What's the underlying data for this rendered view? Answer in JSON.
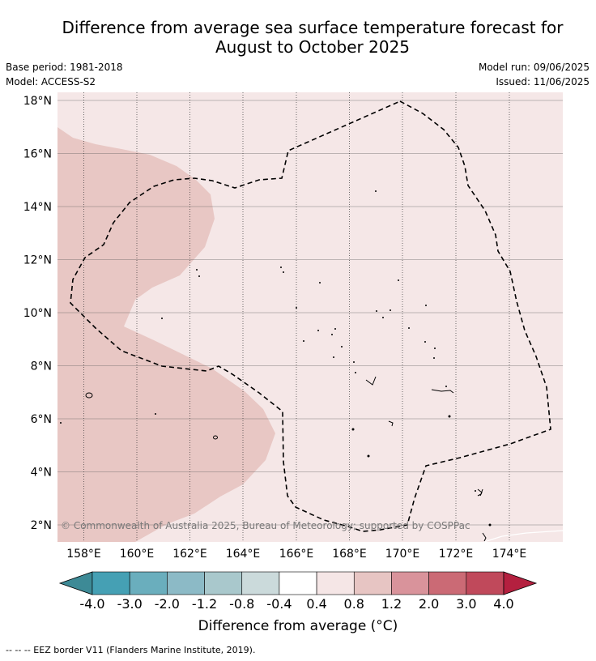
{
  "title_line1": "Difference from average sea surface temperature forecast for",
  "title_line2": "August to October 2025",
  "meta": {
    "base_period": "Base period: 1981-2018",
    "model": "Model: ACCESS-S2",
    "model_run": "Model run: 09/06/2025",
    "issued": "Issued: 11/06/2025"
  },
  "lat_labels": [
    "18°N",
    "16°N",
    "14°N",
    "12°N",
    "10°N",
    "8°N",
    "6°N",
    "4°N",
    "2°N"
  ],
  "lon_labels": [
    "158°E",
    "160°E",
    "162°E",
    "164°E",
    "166°E",
    "168°E",
    "170°E",
    "172°E",
    "174°E"
  ],
  "copyright": "© Commonwealth of Australia 2025, Bureau of Meteorology; supported by COSPPac",
  "colorbar": {
    "ticks": [
      "-4.0",
      "-3.0",
      "-2.0",
      "-1.2",
      "-0.8",
      "-0.4",
      "0.4",
      "0.8",
      "1.2",
      "2.0",
      "3.0",
      "4.0"
    ],
    "colors": [
      "#45a0b4",
      "#6aaebd",
      "#8cbac6",
      "#a9c8cc",
      "#cbdadb",
      "#ffffff",
      "#f5e6e6",
      "#e7c5c3",
      "#d9939b",
      "#cb6a75",
      "#c0495b"
    ],
    "under_color": "#3d8a96",
    "over_color": "#b4203f",
    "label": "Difference from average (°C)"
  },
  "map": {
    "background_color": "#f5e7e7",
    "warm_zone_color": "#e8c7c4"
  },
  "footer": "--  --  -- EEZ border V11 (Flanders Marine Institute, 2019)."
}
